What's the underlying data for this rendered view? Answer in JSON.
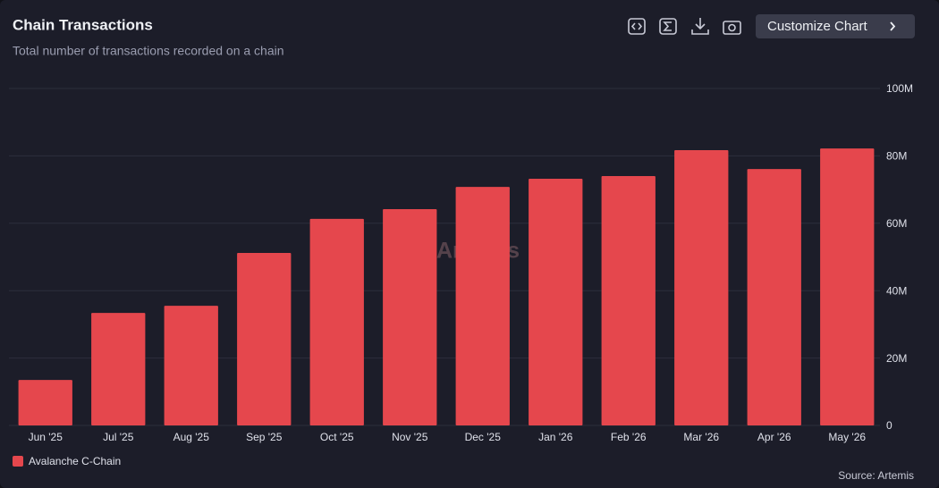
{
  "chart_data": {
    "type": "bar",
    "title": "Chain Transactions",
    "subtitle": "Total number of transactions recorded on a chain",
    "categories": [
      "Jun '25",
      "Jul '25",
      "Aug '25",
      "Sep '25",
      "Oct '25",
      "Nov '25",
      "Dec '25",
      "Jan '26",
      "Feb '26",
      "Mar '26",
      "Apr '26",
      "May '26"
    ],
    "series": [
      {
        "name": "Avalanche C-Chain",
        "color": "#e5474d",
        "values": [
          13500000,
          33400000,
          35500000,
          51200000,
          61300000,
          64200000,
          70800000,
          73200000,
          74000000,
          81700000,
          76100000,
          82200000
        ]
      }
    ],
    "ylim": [
      0,
      100000000
    ],
    "yticks": [
      0,
      {
        "value": 20000000,
        "label": "20M"
      },
      {
        "value": 40000000,
        "label": "40M"
      },
      {
        "value": 60000000,
        "label": "60M"
      },
      {
        "value": 80000000,
        "label": "80M"
      },
      {
        "value": 100000000,
        "label": "100M"
      }
    ],
    "grid": true,
    "watermark": "Artemis",
    "source": "Source: Artemis"
  },
  "toolbar": {
    "button": "Customize Chart"
  }
}
